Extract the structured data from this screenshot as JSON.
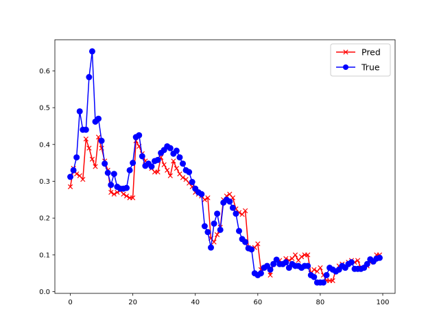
{
  "chart_data": {
    "type": "line",
    "title": "",
    "xlabel": "",
    "ylabel": "",
    "xlim": [
      -4.95,
      103.95
    ],
    "ylim": [
      -0.0045,
      0.6845
    ],
    "xticks": [
      0,
      20,
      40,
      60,
      80,
      100
    ],
    "xtick_labels": [
      "0",
      "20",
      "40",
      "60",
      "80",
      "100"
    ],
    "yticks": [
      0.0,
      0.1,
      0.2,
      0.3,
      0.4,
      0.5,
      0.6
    ],
    "ytick_labels": [
      "0.0",
      "0.1",
      "0.2",
      "0.3",
      "0.4",
      "0.5",
      "0.6"
    ],
    "grid": false,
    "legend_position": "top-right",
    "x": [
      0,
      1,
      2,
      3,
      4,
      5,
      6,
      7,
      8,
      9,
      10,
      11,
      12,
      13,
      14,
      15,
      16,
      17,
      18,
      19,
      20,
      21,
      22,
      23,
      24,
      25,
      26,
      27,
      28,
      29,
      30,
      31,
      32,
      33,
      34,
      35,
      36,
      37,
      38,
      39,
      40,
      41,
      42,
      43,
      44,
      45,
      46,
      47,
      48,
      49,
      50,
      51,
      52,
      53,
      54,
      55,
      56,
      57,
      58,
      59,
      60,
      61,
      62,
      63,
      64,
      65,
      66,
      67,
      68,
      69,
      70,
      71,
      72,
      73,
      74,
      75,
      76,
      77,
      78,
      79,
      80,
      81,
      82,
      83,
      84,
      85,
      86,
      87,
      88,
      89,
      90,
      91,
      92,
      93,
      94,
      95,
      96,
      97,
      98,
      99
    ],
    "series": [
      {
        "name": "Pred",
        "color": "#ff0000",
        "marker": "x",
        "values": [
          0.285,
          0.335,
          0.32,
          0.315,
          0.305,
          0.415,
          0.39,
          0.36,
          0.34,
          0.42,
          0.39,
          0.355,
          0.33,
          0.27,
          0.265,
          0.27,
          0.275,
          0.265,
          0.26,
          0.255,
          0.255,
          0.41,
          0.395,
          0.375,
          0.355,
          0.345,
          0.335,
          0.325,
          0.325,
          0.365,
          0.345,
          0.33,
          0.315,
          0.355,
          0.335,
          0.32,
          0.31,
          0.305,
          0.295,
          0.285,
          0.27,
          0.265,
          0.26,
          0.25,
          0.255,
          0.145,
          0.135,
          0.155,
          0.175,
          0.25,
          0.26,
          0.265,
          0.255,
          0.225,
          0.215,
          0.21,
          0.22,
          0.12,
          0.115,
          0.12,
          0.13,
          0.06,
          0.065,
          0.07,
          0.045,
          0.075,
          0.085,
          0.085,
          0.075,
          0.09,
          0.085,
          0.09,
          0.1,
          0.085,
          0.095,
          0.1,
          0.1,
          0.05,
          0.06,
          0.055,
          0.065,
          0.045,
          0.03,
          0.03,
          0.03,
          0.06,
          0.07,
          0.075,
          0.07,
          0.08,
          0.085,
          0.08,
          0.085,
          0.065,
          0.065,
          0.07,
          0.08,
          0.085,
          0.1,
          0.1
        ]
      },
      {
        "name": "True",
        "color": "#0000ff",
        "marker": "o",
        "values": [
          0.312,
          0.33,
          0.365,
          0.49,
          0.44,
          0.44,
          0.583,
          0.653,
          0.462,
          0.47,
          0.41,
          0.348,
          0.323,
          0.29,
          0.32,
          0.285,
          0.28,
          0.28,
          0.282,
          0.33,
          0.35,
          0.42,
          0.425,
          0.368,
          0.342,
          0.348,
          0.34,
          0.355,
          0.358,
          0.377,
          0.385,
          0.395,
          0.39,
          0.375,
          0.383,
          0.365,
          0.348,
          0.33,
          0.325,
          0.298,
          0.28,
          0.27,
          0.265,
          0.178,
          0.162,
          0.12,
          0.185,
          0.212,
          0.168,
          0.242,
          0.25,
          0.245,
          0.228,
          0.212,
          0.165,
          0.143,
          0.135,
          0.118,
          0.115,
          0.05,
          0.045,
          0.05,
          0.065,
          0.07,
          0.06,
          0.075,
          0.087,
          0.075,
          0.075,
          0.08,
          0.065,
          0.075,
          0.07,
          0.07,
          0.065,
          0.07,
          0.07,
          0.045,
          0.04,
          0.025,
          0.025,
          0.025,
          0.045,
          0.065,
          0.06,
          0.055,
          0.06,
          0.07,
          0.065,
          0.075,
          0.08,
          0.062,
          0.062,
          0.062,
          0.065,
          0.075,
          0.088,
          0.082,
          0.09,
          0.092
        ]
      }
    ]
  }
}
